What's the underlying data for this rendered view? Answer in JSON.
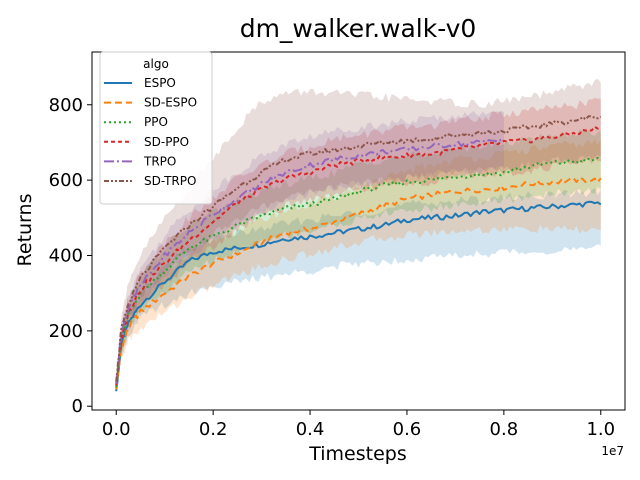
{
  "chart_data": {
    "type": "line",
    "title": "dm_walker.walk-v0",
    "xlabel": "Timesteps",
    "ylabel": "Returns",
    "x_offset_label": "1e7",
    "xlim": [
      -0.05,
      1.05
    ],
    "ylim": [
      -10,
      940
    ],
    "xticks": [
      0.0,
      0.2,
      0.4,
      0.6,
      0.8,
      1.0
    ],
    "xtick_labels": [
      "0.0",
      "0.2",
      "0.4",
      "0.6",
      "0.8",
      "1.0"
    ],
    "yticks": [
      0,
      200,
      400,
      600,
      800
    ],
    "ytick_labels": [
      "0",
      "200",
      "400",
      "600",
      "800"
    ],
    "grid": false,
    "legend": {
      "title": "algo",
      "position": "upper-left"
    },
    "x": [
      0.0,
      0.01,
      0.025,
      0.05,
      0.1,
      0.15,
      0.2,
      0.25,
      0.3,
      0.35,
      0.4,
      0.45,
      0.5,
      0.55,
      0.6,
      0.65,
      0.7,
      0.75,
      0.8,
      0.85,
      0.9,
      0.95,
      1.0
    ],
    "series": [
      {
        "name": "ESPO",
        "color": "#1f77b4",
        "dash": "",
        "x": [
          0.0,
          0.01,
          0.025,
          0.05,
          0.1,
          0.15,
          0.2,
          0.25,
          0.3,
          0.35,
          0.4,
          0.45,
          0.5,
          0.55,
          0.6,
          0.65,
          0.7,
          0.75,
          0.8,
          0.85,
          0.9,
          0.95,
          1.0
        ],
        "values": [
          40,
          160,
          220,
          270,
          330,
          385,
          410,
          420,
          430,
          445,
          450,
          460,
          470,
          480,
          495,
          500,
          505,
          515,
          520,
          525,
          530,
          535,
          540
        ],
        "lower": [
          35,
          130,
          190,
          235,
          270,
          300,
          320,
          330,
          340,
          350,
          360,
          370,
          378,
          385,
          390,
          395,
          400,
          405,
          408,
          410,
          412,
          415,
          420
        ],
        "upper": [
          45,
          185,
          250,
          300,
          370,
          420,
          445,
          460,
          470,
          485,
          495,
          505,
          515,
          520,
          535,
          540,
          545,
          550,
          555,
          560,
          560,
          565,
          570
        ]
      },
      {
        "name": "SD-ESPO",
        "color": "#ff7f0e",
        "dash": "7,4",
        "x": [
          0.0,
          0.01,
          0.025,
          0.05,
          0.1,
          0.15,
          0.2,
          0.25,
          0.3,
          0.35,
          0.4,
          0.45,
          0.5,
          0.55,
          0.6,
          0.65,
          0.7,
          0.75,
          0.8,
          0.85,
          0.9,
          0.95,
          1.0
        ],
        "values": [
          45,
          150,
          210,
          250,
          300,
          345,
          380,
          405,
          435,
          460,
          470,
          490,
          510,
          530,
          550,
          560,
          570,
          575,
          580,
          590,
          595,
          600,
          600
        ],
        "lower": [
          40,
          120,
          175,
          205,
          250,
          290,
          320,
          350,
          370,
          390,
          405,
          420,
          435,
          445,
          455,
          460,
          465,
          468,
          470,
          470,
          470,
          468,
          465
        ],
        "upper": [
          50,
          180,
          245,
          295,
          350,
          400,
          440,
          465,
          495,
          520,
          535,
          555,
          580,
          600,
          625,
          640,
          655,
          660,
          670,
          680,
          690,
          695,
          700
        ]
      },
      {
        "name": "PPO",
        "color": "#2ca02c",
        "dash": "2,3",
        "x": [
          0.0,
          0.01,
          0.025,
          0.05,
          0.1,
          0.15,
          0.2,
          0.25,
          0.3,
          0.35,
          0.4,
          0.45,
          0.5,
          0.55,
          0.6,
          0.65,
          0.7,
          0.75,
          0.8,
          0.85,
          0.9,
          0.95,
          1.0
        ],
        "values": [
          50,
          170,
          240,
          300,
          360,
          420,
          450,
          480,
          505,
          525,
          535,
          550,
          570,
          585,
          595,
          600,
          610,
          615,
          620,
          635,
          645,
          650,
          655
        ],
        "lower": [
          45,
          140,
          205,
          255,
          300,
          355,
          385,
          410,
          435,
          455,
          465,
          480,
          495,
          510,
          520,
          525,
          535,
          540,
          545,
          555,
          565,
          570,
          575
        ],
        "upper": [
          55,
          200,
          275,
          345,
          420,
          480,
          515,
          545,
          570,
          590,
          605,
          620,
          640,
          655,
          665,
          670,
          685,
          690,
          695,
          710,
          720,
          725,
          730
        ]
      },
      {
        "name": "SD-PPO",
        "color": "#d62728",
        "dash": "4,3",
        "x": [
          0.0,
          0.01,
          0.025,
          0.05,
          0.1,
          0.15,
          0.2,
          0.25,
          0.3,
          0.35,
          0.4,
          0.45,
          0.5,
          0.55,
          0.6,
          0.65,
          0.7,
          0.75,
          0.8,
          0.85,
          0.9,
          0.95,
          1.0
        ],
        "values": [
          55,
          180,
          250,
          310,
          380,
          440,
          490,
          540,
          575,
          605,
          620,
          640,
          650,
          660,
          665,
          670,
          680,
          690,
          700,
          705,
          715,
          725,
          740
        ],
        "lower": [
          50,
          150,
          215,
          265,
          325,
          380,
          425,
          470,
          505,
          530,
          550,
          565,
          575,
          585,
          590,
          595,
          605,
          615,
          620,
          625,
          635,
          645,
          655
        ],
        "upper": [
          60,
          210,
          285,
          355,
          435,
          500,
          555,
          605,
          640,
          670,
          690,
          710,
          720,
          730,
          740,
          745,
          755,
          765,
          775,
          785,
          790,
          800,
          815
        ]
      },
      {
        "name": "TRPO",
        "color": "#9467bd",
        "dash": "10,3,2,3",
        "x": [
          0.0,
          0.01,
          0.025,
          0.05,
          0.1,
          0.15,
          0.2,
          0.25,
          0.3,
          0.35,
          0.4,
          0.45,
          0.5,
          0.55,
          0.6,
          0.65,
          0.7,
          0.75,
          0.8
        ],
        "values": [
          60,
          190,
          260,
          320,
          400,
          460,
          510,
          550,
          590,
          620,
          640,
          655,
          665,
          675,
          680,
          690,
          695,
          700,
          710
        ],
        "lower": [
          55,
          160,
          225,
          275,
          345,
          400,
          445,
          480,
          515,
          545,
          565,
          580,
          590,
          600,
          605,
          615,
          620,
          625,
          630
        ],
        "upper": [
          65,
          220,
          295,
          365,
          455,
          520,
          575,
          620,
          665,
          695,
          715,
          730,
          740,
          750,
          755,
          765,
          770,
          775,
          790
        ]
      },
      {
        "name": "SD-TRPO",
        "color": "#8c564b",
        "dash": "5,2,2,2,2,2",
        "x": [
          0.0,
          0.01,
          0.025,
          0.05,
          0.1,
          0.15,
          0.2,
          0.25,
          0.3,
          0.35,
          0.4,
          0.45,
          0.5,
          0.55,
          0.6,
          0.65,
          0.7,
          0.75,
          0.8,
          0.85,
          0.9,
          0.95,
          1.0
        ],
        "values": [
          65,
          200,
          270,
          340,
          420,
          480,
          530,
          580,
          620,
          655,
          670,
          680,
          690,
          700,
          705,
          710,
          720,
          725,
          730,
          740,
          750,
          760,
          770
        ],
        "lower": [
          58,
          165,
          230,
          290,
          360,
          410,
          455,
          495,
          525,
          555,
          570,
          580,
          590,
          600,
          605,
          610,
          620,
          625,
          630,
          640,
          650,
          655,
          660
        ],
        "upper": [
          72,
          240,
          320,
          400,
          500,
          575,
          660,
          740,
          810,
          830,
          835,
          830,
          825,
          820,
          815,
          810,
          805,
          800,
          810,
          820,
          830,
          850,
          860
        ]
      }
    ]
  }
}
